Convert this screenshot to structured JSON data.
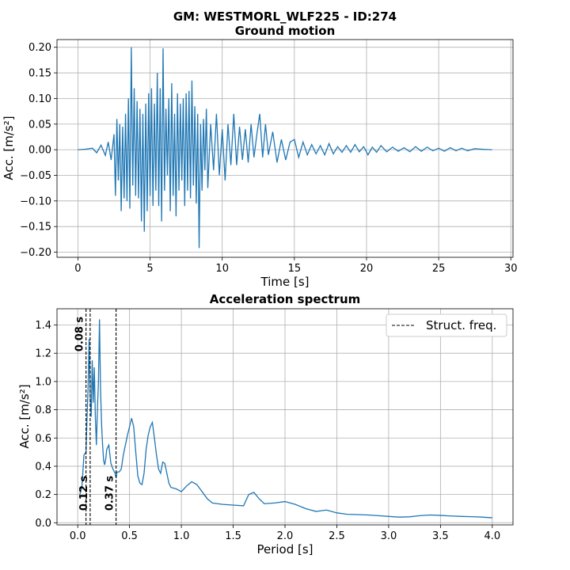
{
  "figure": {
    "suptitle": "GM: WESTMORL_WLF225 - ID:274"
  },
  "chart_data": [
    {
      "type": "line",
      "title": "Ground motion",
      "xlabel": "Time [s]",
      "ylabel": "Acc. [m/s²]",
      "xlim": [
        -1.45,
        30.15
      ],
      "ylim": [
        -0.21,
        0.215
      ],
      "xticks": [
        0,
        5,
        10,
        15,
        20,
        25,
        30
      ],
      "yticks": [
        -0.2,
        -0.15,
        -0.1,
        -0.05,
        0.0,
        0.05,
        0.1,
        0.15,
        0.2
      ],
      "ytick_labels": [
        "−0.20",
        "−0.15",
        "−0.10",
        "−0.05",
        "0.00",
        "0.05",
        "0.10",
        "0.15",
        "0.20"
      ],
      "grid": true,
      "color": "#1f77b4",
      "series": [
        {
          "x": [
            0,
            0.5,
            1.0,
            1.3,
            1.6,
            1.9,
            2.1,
            2.3,
            2.5,
            2.6,
            2.7,
            2.8,
            2.9,
            3.0,
            3.1,
            3.2,
            3.3,
            3.4,
            3.5,
            3.6,
            3.7,
            3.8,
            3.9,
            4.0,
            4.1,
            4.2,
            4.3,
            4.4,
            4.5,
            4.6,
            4.7,
            4.8,
            4.9,
            5.0,
            5.1,
            5.2,
            5.3,
            5.4,
            5.5,
            5.6,
            5.7,
            5.8,
            5.9,
            6.0,
            6.1,
            6.2,
            6.3,
            6.4,
            6.5,
            6.6,
            6.7,
            6.8,
            6.9,
            7.0,
            7.1,
            7.2,
            7.3,
            7.4,
            7.5,
            7.6,
            7.7,
            7.8,
            7.9,
            8.0,
            8.1,
            8.2,
            8.3,
            8.4,
            8.5,
            8.6,
            8.7,
            8.8,
            8.9,
            9.0,
            9.2,
            9.4,
            9.6,
            9.8,
            10.0,
            10.2,
            10.4,
            10.6,
            10.8,
            11.0,
            11.2,
            11.4,
            11.6,
            11.8,
            12.0,
            12.2,
            12.4,
            12.6,
            12.8,
            13.0,
            13.2,
            13.5,
            13.8,
            14.1,
            14.4,
            14.7,
            15.0,
            15.3,
            15.6,
            15.9,
            16.2,
            16.5,
            16.8,
            17.1,
            17.4,
            17.7,
            18.0,
            18.3,
            18.6,
            18.9,
            19.2,
            19.5,
            19.8,
            20.1,
            20.4,
            20.7,
            21.0,
            21.4,
            21.8,
            22.2,
            22.6,
            23.0,
            23.4,
            23.8,
            24.2,
            24.6,
            25.0,
            25.4,
            25.8,
            26.2,
            26.6,
            27.0,
            27.5,
            28.0,
            28.7
          ],
          "y": [
            0.0,
            0.001,
            0.003,
            -0.006,
            0.009,
            -0.011,
            0.015,
            -0.02,
            0.03,
            -0.09,
            0.06,
            -0.06,
            0.05,
            -0.12,
            0.045,
            -0.095,
            0.07,
            -0.1,
            0.1,
            -0.115,
            0.2,
            -0.07,
            0.12,
            -0.09,
            0.095,
            -0.095,
            0.08,
            -0.14,
            0.07,
            -0.16,
            0.09,
            -0.12,
            0.11,
            -0.09,
            0.12,
            -0.11,
            0.09,
            -0.08,
            0.15,
            -0.11,
            0.12,
            -0.14,
            0.198,
            -0.08,
            0.08,
            -0.05,
            0.1,
            -0.12,
            0.13,
            -0.09,
            0.07,
            -0.13,
            0.11,
            -0.08,
            0.09,
            -0.06,
            0.1,
            -0.11,
            0.11,
            -0.08,
            0.115,
            -0.095,
            0.135,
            -0.07,
            0.085,
            -0.105,
            0.07,
            -0.192,
            0.05,
            -0.08,
            0.06,
            -0.04,
            0.08,
            -0.075,
            0.05,
            -0.04,
            0.07,
            -0.05,
            0.04,
            -0.06,
            0.05,
            -0.03,
            0.07,
            -0.03,
            0.045,
            -0.02,
            0.04,
            -0.025,
            0.05,
            -0.015,
            0.03,
            0.07,
            -0.015,
            0.05,
            -0.01,
            0.035,
            -0.025,
            0.02,
            -0.02,
            0.015,
            0.02,
            -0.015,
            0.015,
            -0.01,
            0.01,
            -0.008,
            0.008,
            -0.01,
            0.012,
            -0.008,
            0.006,
            -0.005,
            0.008,
            -0.005,
            0.01,
            -0.004,
            0.006,
            -0.01,
            0.005,
            -0.005,
            0.008,
            -0.004,
            0.005,
            -0.003,
            0.004,
            -0.004,
            0.006,
            -0.003,
            0.005,
            -0.002,
            0.003,
            -0.003,
            0.004,
            -0.002,
            0.003,
            -0.002,
            0.002,
            0.001,
            0.0
          ]
        }
      ]
    },
    {
      "type": "line",
      "title": "Acceleration spectrum",
      "xlabel": "Period [s]",
      "ylabel": "Acc. [m/s²]",
      "xlim": [
        -0.2,
        4.2
      ],
      "ylim": [
        -0.015,
        1.515
      ],
      "xticks": [
        0.0,
        0.5,
        1.0,
        1.5,
        2.0,
        2.5,
        3.0,
        3.5,
        4.0
      ],
      "yticks": [
        0.0,
        0.2,
        0.4,
        0.6,
        0.8,
        1.0,
        1.2,
        1.4
      ],
      "grid": true,
      "color": "#1f77b4",
      "legend": {
        "position": "top-right",
        "entries": [
          "Struct. freq."
        ]
      },
      "vlines": [
        {
          "x": 0.08,
          "label": "0.08 s",
          "label_pos": "top"
        },
        {
          "x": 0.12,
          "label": "0.12 s",
          "label_pos": "bottom"
        },
        {
          "x": 0.37,
          "label": "0.37 s",
          "label_pos": "bottom"
        }
      ],
      "series": [
        {
          "name": "",
          "x": [
            0.02,
            0.04,
            0.06,
            0.08,
            0.09,
            0.1,
            0.11,
            0.12,
            0.13,
            0.14,
            0.15,
            0.16,
            0.17,
            0.18,
            0.19,
            0.2,
            0.21,
            0.22,
            0.23,
            0.24,
            0.25,
            0.26,
            0.27,
            0.28,
            0.3,
            0.32,
            0.34,
            0.36,
            0.37,
            0.38,
            0.4,
            0.42,
            0.44,
            0.46,
            0.48,
            0.5,
            0.52,
            0.54,
            0.56,
            0.58,
            0.6,
            0.62,
            0.64,
            0.66,
            0.68,
            0.7,
            0.72,
            0.74,
            0.76,
            0.78,
            0.8,
            0.82,
            0.84,
            0.86,
            0.88,
            0.9,
            0.95,
            1.0,
            1.05,
            1.1,
            1.15,
            1.2,
            1.25,
            1.3,
            1.35,
            1.4,
            1.5,
            1.6,
            1.65,
            1.7,
            1.75,
            1.8,
            1.9,
            2.0,
            2.1,
            2.2,
            2.3,
            2.35,
            2.4,
            2.5,
            2.6,
            2.7,
            2.8,
            2.9,
            3.0,
            3.1,
            3.2,
            3.3,
            3.4,
            3.5,
            3.6,
            3.7,
            3.8,
            3.9,
            4.0
          ],
          "y": [
            0.2,
            0.25,
            0.48,
            0.5,
            0.75,
            0.95,
            1.3,
            0.9,
            0.75,
            1.15,
            0.85,
            1.1,
            0.75,
            0.55,
            0.8,
            1.0,
            1.44,
            0.95,
            0.7,
            0.55,
            0.44,
            0.41,
            0.45,
            0.52,
            0.55,
            0.42,
            0.38,
            0.35,
            0.32,
            0.36,
            0.36,
            0.38,
            0.48,
            0.55,
            0.62,
            0.68,
            0.74,
            0.68,
            0.5,
            0.33,
            0.28,
            0.27,
            0.35,
            0.52,
            0.62,
            0.68,
            0.71,
            0.6,
            0.48,
            0.38,
            0.35,
            0.43,
            0.42,
            0.35,
            0.28,
            0.25,
            0.24,
            0.22,
            0.26,
            0.29,
            0.27,
            0.22,
            0.17,
            0.14,
            0.135,
            0.13,
            0.125,
            0.12,
            0.2,
            0.215,
            0.17,
            0.135,
            0.14,
            0.15,
            0.13,
            0.1,
            0.08,
            0.085,
            0.09,
            0.07,
            0.06,
            0.058,
            0.055,
            0.05,
            0.045,
            0.04,
            0.042,
            0.05,
            0.055,
            0.052,
            0.048,
            0.045,
            0.043,
            0.04,
            0.035
          ]
        }
      ]
    }
  ]
}
